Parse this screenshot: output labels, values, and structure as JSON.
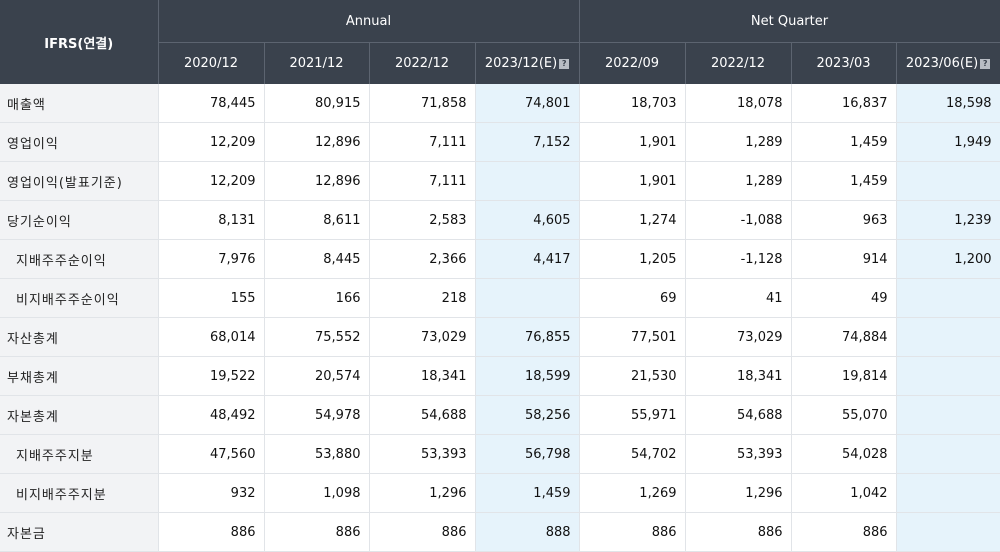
{
  "header": {
    "corner_label": "IFRS(연결)",
    "annual_label": "Annual",
    "quarter_label": "Net Quarter",
    "periods": [
      "2020/12",
      "2021/12",
      "2022/12",
      "2023/12(E)",
      "2022/09",
      "2022/12",
      "2023/03",
      "2023/06(E)"
    ],
    "estimate_icon": "question-mark-icon"
  },
  "colors": {
    "header_bg": "#3a424d",
    "label_bg": "#f2f3f5",
    "estimate_bg": "#e6f3fb",
    "negative": "#e8151b"
  },
  "rows": [
    {
      "label": "매출액",
      "values": [
        "78,445",
        "80,915",
        "71,858",
        "74,801",
        "18,703",
        "18,078",
        "16,837",
        "18,598"
      ]
    },
    {
      "label": "영업이익",
      "values": [
        "12,209",
        "12,896",
        "7,111",
        "7,152",
        "1,901",
        "1,289",
        "1,459",
        "1,949"
      ]
    },
    {
      "label": "영업이익(발표기준)",
      "values": [
        "12,209",
        "12,896",
        "7,111",
        "",
        "1,901",
        "1,289",
        "1,459",
        ""
      ]
    },
    {
      "label": "당기순이익",
      "values": [
        "8,131",
        "8,611",
        "2,583",
        "4,605",
        "1,274",
        "-1,088",
        "963",
        "1,239"
      ]
    },
    {
      "label": "지배주주순이익",
      "values": [
        "7,976",
        "8,445",
        "2,366",
        "4,417",
        "1,205",
        "-1,128",
        "914",
        "1,200"
      ]
    },
    {
      "label": "비지배주주순이익",
      "values": [
        "155",
        "166",
        "218",
        "",
        "69",
        "41",
        "49",
        ""
      ]
    },
    {
      "label": "자산총계",
      "values": [
        "68,014",
        "75,552",
        "73,029",
        "76,855",
        "77,501",
        "73,029",
        "74,884",
        ""
      ]
    },
    {
      "label": "부채총계",
      "values": [
        "19,522",
        "20,574",
        "18,341",
        "18,599",
        "21,530",
        "18,341",
        "19,814",
        ""
      ]
    },
    {
      "label": "자본총계",
      "values": [
        "48,492",
        "54,978",
        "54,688",
        "58,256",
        "55,971",
        "54,688",
        "55,070",
        ""
      ]
    },
    {
      "label": "지배주주지분",
      "values": [
        "47,560",
        "53,880",
        "53,393",
        "56,798",
        "54,702",
        "53,393",
        "54,028",
        ""
      ]
    },
    {
      "label": "비지배주주지분",
      "values": [
        "932",
        "1,098",
        "1,296",
        "1,459",
        "1,269",
        "1,296",
        "1,042",
        ""
      ]
    },
    {
      "label": "자본금",
      "values": [
        "886",
        "886",
        "886",
        "888",
        "886",
        "886",
        "886",
        ""
      ]
    }
  ]
}
